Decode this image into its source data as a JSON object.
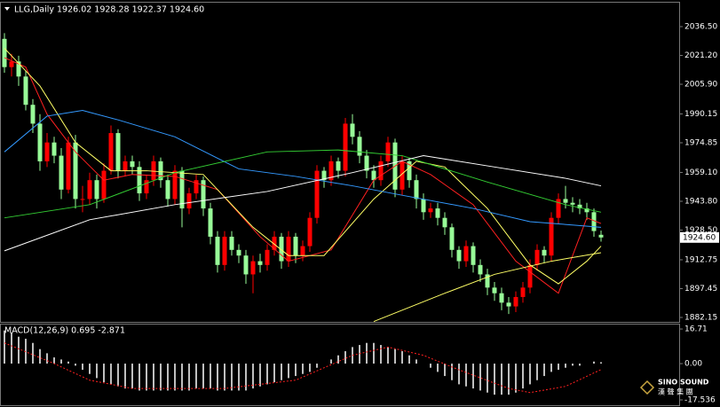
{
  "header": {
    "symbol": "LLG,Daily",
    "ohlc": "1926.02 1928.28 1922.37 1924.60"
  },
  "watermark": {
    "brand": "SINO SOUND",
    "chinese": "漢 聲 集 團"
  },
  "chart_data": [
    {
      "type": "candlestick",
      "up_color": "#ff0000",
      "down_color": "#98fb98",
      "ylim": [
        1879.8,
        2049.2
      ],
      "yticks": [
        {
          "value": 2036.5,
          "label": "2036.50"
        },
        {
          "value": 2021.2,
          "label": "2021.20"
        },
        {
          "value": 2005.9,
          "label": "2005.90"
        },
        {
          "value": 1990.15,
          "label": "1990.15"
        },
        {
          "value": 1974.85,
          "label": "1974.85"
        },
        {
          "value": 1959.1,
          "label": "1959.10"
        },
        {
          "value": 1943.8,
          "label": "1943.80"
        },
        {
          "value": 1928.5,
          "label": "1928.50"
        },
        {
          "value": 1912.75,
          "label": "1912.75"
        },
        {
          "value": 1897.45,
          "label": "1897.45"
        },
        {
          "value": 1882.15,
          "label": "1882.15"
        }
      ],
      "current_price": {
        "value": 1924.6,
        "label": "1924.60"
      },
      "candles": [
        [
          2030,
          2033,
          2012,
          2015
        ],
        [
          2015,
          2022,
          2010,
          2018
        ],
        [
          2018,
          2021,
          2005,
          2010
        ],
        [
          2010,
          2013,
          1992,
          1995
        ],
        [
          1995,
          1998,
          1980,
          1985
        ],
        [
          1985,
          1990,
          1960,
          1965
        ],
        [
          1965,
          1980,
          1962,
          1975
        ],
        [
          1975,
          1978,
          1964,
          1968
        ],
        [
          1968,
          1972,
          1945,
          1950
        ],
        [
          1950,
          1978,
          1948,
          1975
        ],
        [
          1975,
          1979,
          1940,
          1945
        ],
        [
          1945,
          1952,
          1938,
          1945
        ],
        [
          1945,
          1959,
          1942,
          1955
        ],
        [
          1955,
          1958,
          1940,
          1945
        ],
        [
          1945,
          1964,
          1943,
          1960
        ],
        [
          1960,
          1984,
          1958,
          1980
        ],
        [
          1980,
          1982,
          1956,
          1960
        ],
        [
          1960,
          1968,
          1957,
          1965
        ],
        [
          1965,
          1968,
          1958,
          1962
        ],
        [
          1962,
          1965,
          1944,
          1948
        ],
        [
          1948,
          1958,
          1945,
          1955
        ],
        [
          1955,
          1968,
          1952,
          1965
        ],
        [
          1965,
          1967,
          1951,
          1955
        ],
        [
          1955,
          1958,
          1941,
          1945
        ],
        [
          1945,
          1963,
          1942,
          1960
        ],
        [
          1960,
          1962,
          1930,
          1940
        ],
        [
          1940,
          1951,
          1937,
          1948
        ],
        [
          1948,
          1958,
          1945,
          1955
        ],
        [
          1955,
          1957,
          1936,
          1940
        ],
        [
          1940,
          1943,
          1921,
          1925
        ],
        [
          1925,
          1928,
          1906,
          1910
        ],
        [
          1910,
          1928,
          1907,
          1925
        ],
        [
          1925,
          1928,
          1915,
          1918
        ],
        [
          1918,
          1921,
          1911,
          1915
        ],
        [
          1915,
          1918,
          1900,
          1905
        ],
        [
          1905,
          1915,
          1895,
          1912
        ],
        [
          1912,
          1916,
          1906,
          1910
        ],
        [
          1910,
          1921,
          1907,
          1918
        ],
        [
          1918,
          1928,
          1915,
          1925
        ],
        [
          1925,
          1927,
          1908,
          1912
        ],
        [
          1912,
          1928,
          1909,
          1925
        ],
        [
          1925,
          1927,
          1911,
          1915
        ],
        [
          1915,
          1923,
          1912,
          1920
        ],
        [
          1920,
          1938,
          1917,
          1935
        ],
        [
          1935,
          1963,
          1932,
          1960
        ],
        [
          1960,
          1962,
          1951,
          1955
        ],
        [
          1955,
          1968,
          1952,
          1965
        ],
        [
          1965,
          1967,
          1956,
          1960
        ],
        [
          1960,
          1988,
          1957,
          1985
        ],
        [
          1985,
          1990,
          1974,
          1978
        ],
        [
          1978,
          1981,
          1964,
          1968
        ],
        [
          1968,
          1971,
          1956,
          1960
        ],
        [
          1960,
          1963,
          1951,
          1955
        ],
        [
          1955,
          1968,
          1952,
          1965
        ],
        [
          1965,
          1978,
          1962,
          1975
        ],
        [
          1975,
          1977,
          1946,
          1950
        ],
        [
          1950,
          1968,
          1947,
          1965
        ],
        [
          1965,
          1967,
          1951,
          1955
        ],
        [
          1955,
          1958,
          1940,
          1945
        ],
        [
          1945,
          1948,
          1934,
          1938
        ],
        [
          1938,
          1943,
          1935,
          1940
        ],
        [
          1940,
          1943,
          1931,
          1935
        ],
        [
          1935,
          1938,
          1926,
          1930
        ],
        [
          1930,
          1932,
          1914,
          1918
        ],
        [
          1918,
          1920,
          1908,
          1912
        ],
        [
          1912,
          1923,
          1909,
          1920
        ],
        [
          1920,
          1922,
          1906,
          1910
        ],
        [
          1910,
          1913,
          1901,
          1905
        ],
        [
          1905,
          1908,
          1894,
          1898
        ],
        [
          1898,
          1901,
          1891,
          1895
        ],
        [
          1895,
          1898,
          1886,
          1890
        ],
        [
          1890,
          1893,
          1884,
          1888
        ],
        [
          1888,
          1896,
          1885,
          1893
        ],
        [
          1893,
          1901,
          1890,
          1898
        ],
        [
          1898,
          1913,
          1895,
          1910
        ],
        [
          1910,
          1921,
          1907,
          1918
        ],
        [
          1918,
          1920,
          1911,
          1915
        ],
        [
          1915,
          1938,
          1912,
          1935
        ],
        [
          1935,
          1948,
          1932,
          1945
        ],
        [
          1945,
          1952,
          1940,
          1943
        ],
        [
          1943,
          1946,
          1938,
          1942
        ],
        [
          1942,
          1945,
          1937,
          1940
        ],
        [
          1940,
          1943,
          1934,
          1938
        ],
        [
          1938,
          1940,
          1925,
          1928
        ],
        [
          1926.02,
          1928.28,
          1922.37,
          1924.6
        ]
      ],
      "lines": [
        {
          "color": "#ff2020",
          "x": [
            0,
            3,
            6,
            10,
            14,
            18,
            24,
            30,
            36,
            40,
            46,
            52,
            56,
            60,
            66,
            72,
            78,
            82,
            84
          ],
          "values": [
            2020,
            2015,
            1990,
            1970,
            1955,
            1958,
            1957,
            1950,
            1925,
            1912,
            1918,
            1955,
            1965,
            1958,
            1942,
            1912,
            1895,
            1935,
            1932
          ]
        },
        {
          "color": "#ffff66",
          "x": [
            0,
            5,
            10,
            15,
            20,
            28,
            35,
            40,
            45,
            52,
            58,
            62,
            68,
            74,
            78,
            82,
            84
          ],
          "values": [
            2025,
            2005,
            1975,
            1960,
            1960,
            1958,
            1930,
            1915,
            1915,
            1945,
            1965,
            1962,
            1940,
            1910,
            1900,
            1912,
            1920
          ]
        },
        {
          "color": "#3399ff",
          "x": [
            0,
            6,
            11,
            16,
            24,
            33,
            41,
            49,
            56,
            66,
            74,
            84
          ],
          "values": [
            1970,
            1989,
            1992,
            1987,
            1978,
            1961,
            1957,
            1952,
            1947,
            1940,
            1933,
            1930
          ]
        },
        {
          "color": "#33cc33",
          "x": [
            0,
            12,
            24,
            37,
            47,
            56,
            68,
            79,
            84
          ],
          "values": [
            1935,
            1942,
            1959,
            1970,
            1971,
            1968,
            1954,
            1942,
            1938
          ]
        },
        {
          "color": "#ffffff",
          "x": [
            0,
            12,
            24,
            37,
            49,
            59,
            69,
            79,
            84
          ],
          "values": [
            1917.5,
            1934,
            1942,
            1949,
            1959,
            1968,
            1962,
            1956,
            1952
          ]
        },
        {
          "color": "#ffff66",
          "x": [
            52,
            62,
            69,
            77,
            84
          ],
          "values": [
            1880,
            1895,
            1905,
            1912,
            1916.5
          ]
        }
      ]
    },
    {
      "type": "macd",
      "title": "MACD(12,26,9) 0.695 -2.871",
      "ylim": [
        -20.1,
        19.3
      ],
      "yticks": [
        16.71,
        {
          "value": 0,
          "label": "0.00"
        },
        -17.536
      ],
      "histogram_color": "#ffffff",
      "signal_color": "#ff2020",
      "histogram": [
        16,
        15,
        13,
        12,
        10,
        7,
        5,
        3,
        2,
        1,
        -1,
        -3,
        -5,
        -7,
        -9,
        -10,
        -11,
        -12,
        -12,
        -13,
        -13,
        -13,
        -13,
        -13,
        -13,
        -13,
        -13,
        -12,
        -12,
        -12,
        -13,
        -13,
        -13,
        -13,
        -13,
        -12,
        -11,
        -10,
        -9,
        -8,
        -7,
        -6,
        -5,
        -4,
        -2,
        0,
        2,
        4,
        6,
        8,
        9,
        10,
        10,
        9,
        8,
        7,
        6,
        4,
        2,
        0,
        -2,
        -4,
        -6,
        -8,
        -10,
        -11,
        -12,
        -13,
        -14,
        -15,
        -15,
        -15,
        -14,
        -12,
        -10,
        -8,
        -6,
        -4,
        -3,
        -2,
        -1,
        -1,
        0,
        1,
        0.695
      ],
      "signal": {
        "x": [
          0,
          7,
          12,
          18,
          31,
          41,
          49,
          54,
          59,
          64,
          71,
          74,
          79,
          84
        ],
        "values": [
          10,
          0,
          -8,
          -12,
          -12,
          -8,
          4,
          8,
          4,
          -3,
          -12,
          -14,
          -11,
          -2.871
        ]
      }
    }
  ]
}
